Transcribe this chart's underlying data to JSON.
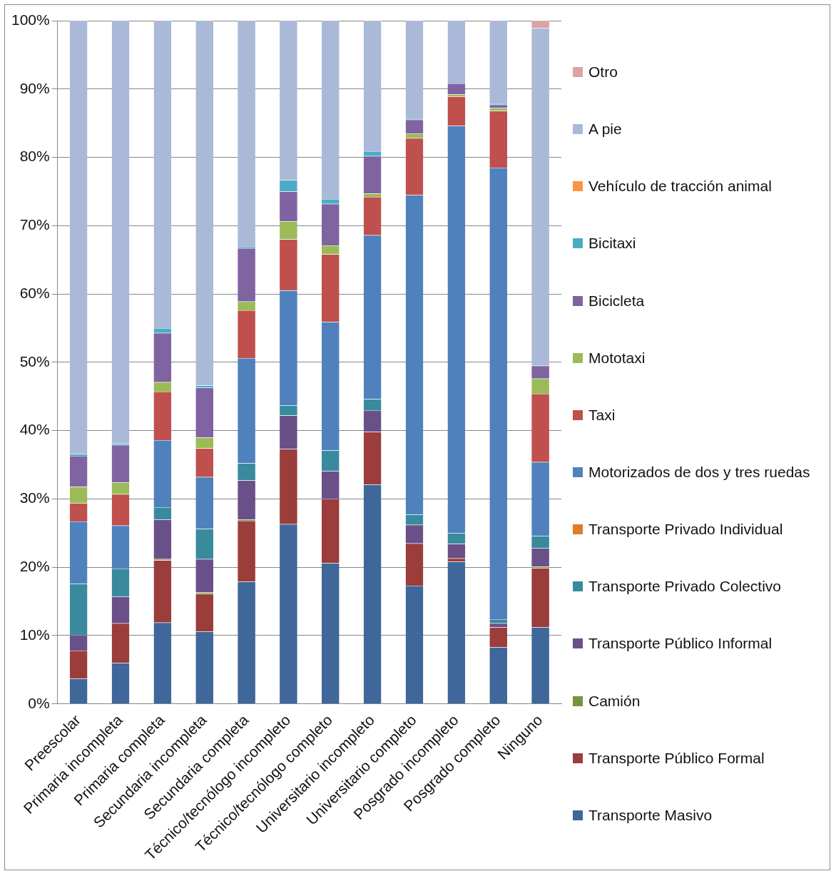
{
  "chart_data": {
    "type": "bar",
    "stacked": true,
    "legend": "right",
    "grid": "y",
    "categories": [
      "Preescolar",
      "Primaria incompleta",
      "Primaria completa",
      "Secundaria incompleta",
      "Secundaria completa",
      "Técnico/tecnólogo incompleto",
      "Técnico/tecnólogo completo",
      "Universitario incompleto",
      "Universitario completo",
      "Posgrado incompleto",
      "Posgrado completo",
      "Ninguno"
    ],
    "ylim": [
      0,
      100
    ],
    "yticks": [
      {
        "value": 0,
        "label": "0%"
      },
      {
        "value": 10,
        "label": "10%"
      },
      {
        "value": 20,
        "label": "20%"
      },
      {
        "value": 30,
        "label": "30%"
      },
      {
        "value": 40,
        "label": "40%"
      },
      {
        "value": 50,
        "label": "50%"
      },
      {
        "value": 60,
        "label": "60%"
      },
      {
        "value": 70,
        "label": "70%"
      },
      {
        "value": 80,
        "label": "80%"
      },
      {
        "value": 90,
        "label": "90%"
      },
      {
        "value": 100,
        "label": "100%"
      }
    ],
    "series": [
      {
        "name": "Transporte Masivo",
        "color": "#3f679a",
        "values": [
          3.7,
          6.0,
          11.9,
          10.6,
          17.9,
          26.3,
          20.6,
          32.1,
          17.3,
          20.8,
          8.3,
          11.2
        ]
      },
      {
        "name": "Transporte Público Formal",
        "color": "#9b3d3b",
        "values": [
          4.1,
          5.8,
          9.1,
          5.5,
          8.9,
          11.0,
          9.4,
          7.7,
          6.2,
          0.5,
          2.9,
          8.7
        ]
      },
      {
        "name": "Camión",
        "color": "#77933c",
        "values": [
          0,
          null,
          0.2,
          0.2,
          0.2,
          null,
          null,
          null,
          0,
          0,
          null,
          0.2
        ]
      },
      {
        "name": "Transporte Público Informal",
        "color": "#6a5088",
        "values": [
          2.3,
          3.9,
          5.8,
          4.9,
          5.7,
          4.9,
          4.1,
          3.2,
          2.7,
          2.1,
          0.6,
          2.7
        ]
      },
      {
        "name": "Transporte Privado Colectivo",
        "color": "#3a8a9e",
        "values": [
          7.5,
          4.1,
          1.8,
          4.4,
          2.5,
          1.5,
          3.0,
          1.6,
          1.5,
          1.6,
          0.6,
          1.8
        ]
      },
      {
        "name": "Transporte Privado Individual",
        "color": "#e07b28",
        "values": [
          0,
          0,
          0,
          0,
          0,
          0,
          0,
          0,
          0,
          0,
          0,
          0
        ]
      },
      {
        "name": "Motorizados de dos y tres ruedas",
        "color": "#4f81bd",
        "values": [
          9.1,
          6.3,
          9.8,
          7.6,
          15.4,
          16.8,
          18.8,
          24.0,
          46.8,
          59.6,
          66.1,
          10.8
        ]
      },
      {
        "name": "Taxi",
        "color": "#c0504d",
        "values": [
          2.7,
          4.6,
          7.1,
          4.2,
          7.0,
          7.5,
          9.9,
          5.6,
          8.3,
          4.3,
          8.3,
          10.0
        ]
      },
      {
        "name": "Mototaxi",
        "color": "#9bbb59",
        "values": [
          2.4,
          1.7,
          1.4,
          1.6,
          1.3,
          2.6,
          1.3,
          0.5,
          0.7,
          0.3,
          0.4,
          2.2
        ]
      },
      {
        "name": "Bicicleta",
        "color": "#8064a2",
        "values": [
          4.5,
          5.5,
          7.2,
          7.3,
          7.8,
          4.4,
          6.1,
          5.5,
          2.0,
          1.6,
          0.5,
          1.9
        ]
      },
      {
        "name": "Bicitaxi",
        "color": "#4bacc6",
        "values": [
          0.3,
          0.2,
          0.7,
          0.3,
          0.2,
          1.7,
          0.7,
          0.7,
          0.2,
          0,
          0.2,
          0
        ]
      },
      {
        "name": "Vehículo de tracción animal",
        "color": "#f79646",
        "values": [
          0,
          0,
          0,
          0,
          0,
          0,
          0,
          0,
          0,
          0,
          0,
          0
        ]
      },
      {
        "name": "A pie",
        "color": "#aab9d7",
        "values": [
          63.4,
          61.9,
          45.0,
          53.4,
          33.1,
          23.3,
          26.1,
          19.1,
          14.3,
          9.2,
          12.1,
          49.4
        ]
      },
      {
        "name": "Otro",
        "color": "#d9a4a3",
        "values": [
          0,
          0,
          0,
          0,
          0,
          0,
          0,
          0,
          0,
          0,
          0,
          1.1
        ]
      }
    ]
  }
}
